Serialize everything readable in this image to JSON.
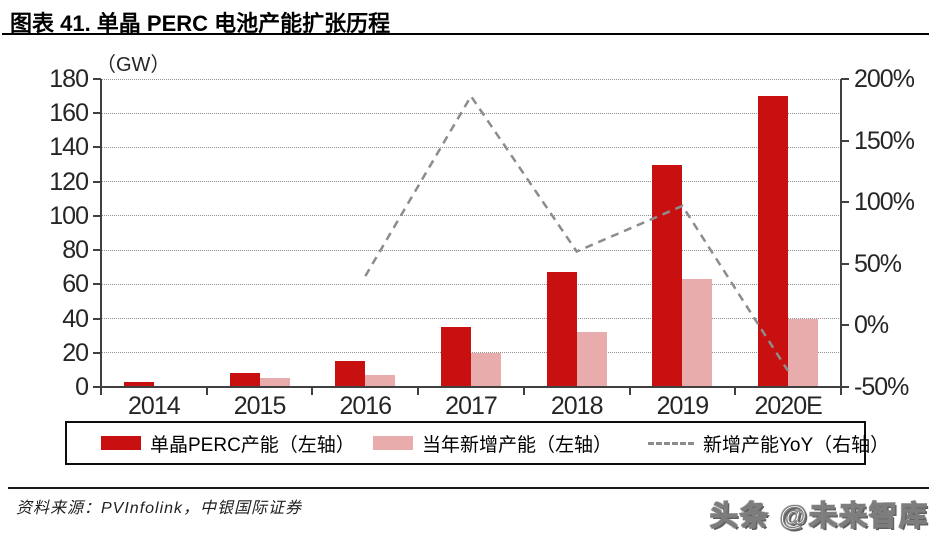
{
  "header": {
    "title": "图表 41. 单晶 PERC 电池产能扩张历程"
  },
  "footer": {
    "source": "资料来源：PVInfolink，中银国际证券",
    "watermark": "头条 @未来智库"
  },
  "chart_data": {
    "type": "bar",
    "title": "图表 41. 单晶 PERC 电池产能扩张历程",
    "unit_label": "（GW）",
    "categories": [
      "2014",
      "2015",
      "2016",
      "2017",
      "2018",
      "2019",
      "2020E"
    ],
    "series": [
      {
        "name": "单晶PERC产能（左轴）",
        "type": "bar",
        "axis": "left",
        "color": "#C81010",
        "values": [
          3,
          8,
          15,
          35,
          67,
          130,
          170
        ]
      },
      {
        "name": "当年新增产能（左轴）",
        "type": "bar",
        "axis": "left",
        "color": "#E8ACAC",
        "values": [
          null,
          5,
          7,
          20,
          32,
          63,
          40
        ]
      },
      {
        "name": "新增产能YoY（右轴）",
        "type": "line",
        "line_style": "dashed",
        "axis": "right",
        "color": "#8C8C8C",
        "values": [
          null,
          null,
          40,
          186,
          60,
          97,
          -37
        ]
      }
    ],
    "left_axis": {
      "min": 0,
      "max": 180,
      "step": 20
    },
    "right_axis": {
      "min": -50,
      "max": 200,
      "step": 50,
      "suffix": "%"
    },
    "grid": "horizontal-dotted",
    "legend_position": "bottom-box"
  }
}
